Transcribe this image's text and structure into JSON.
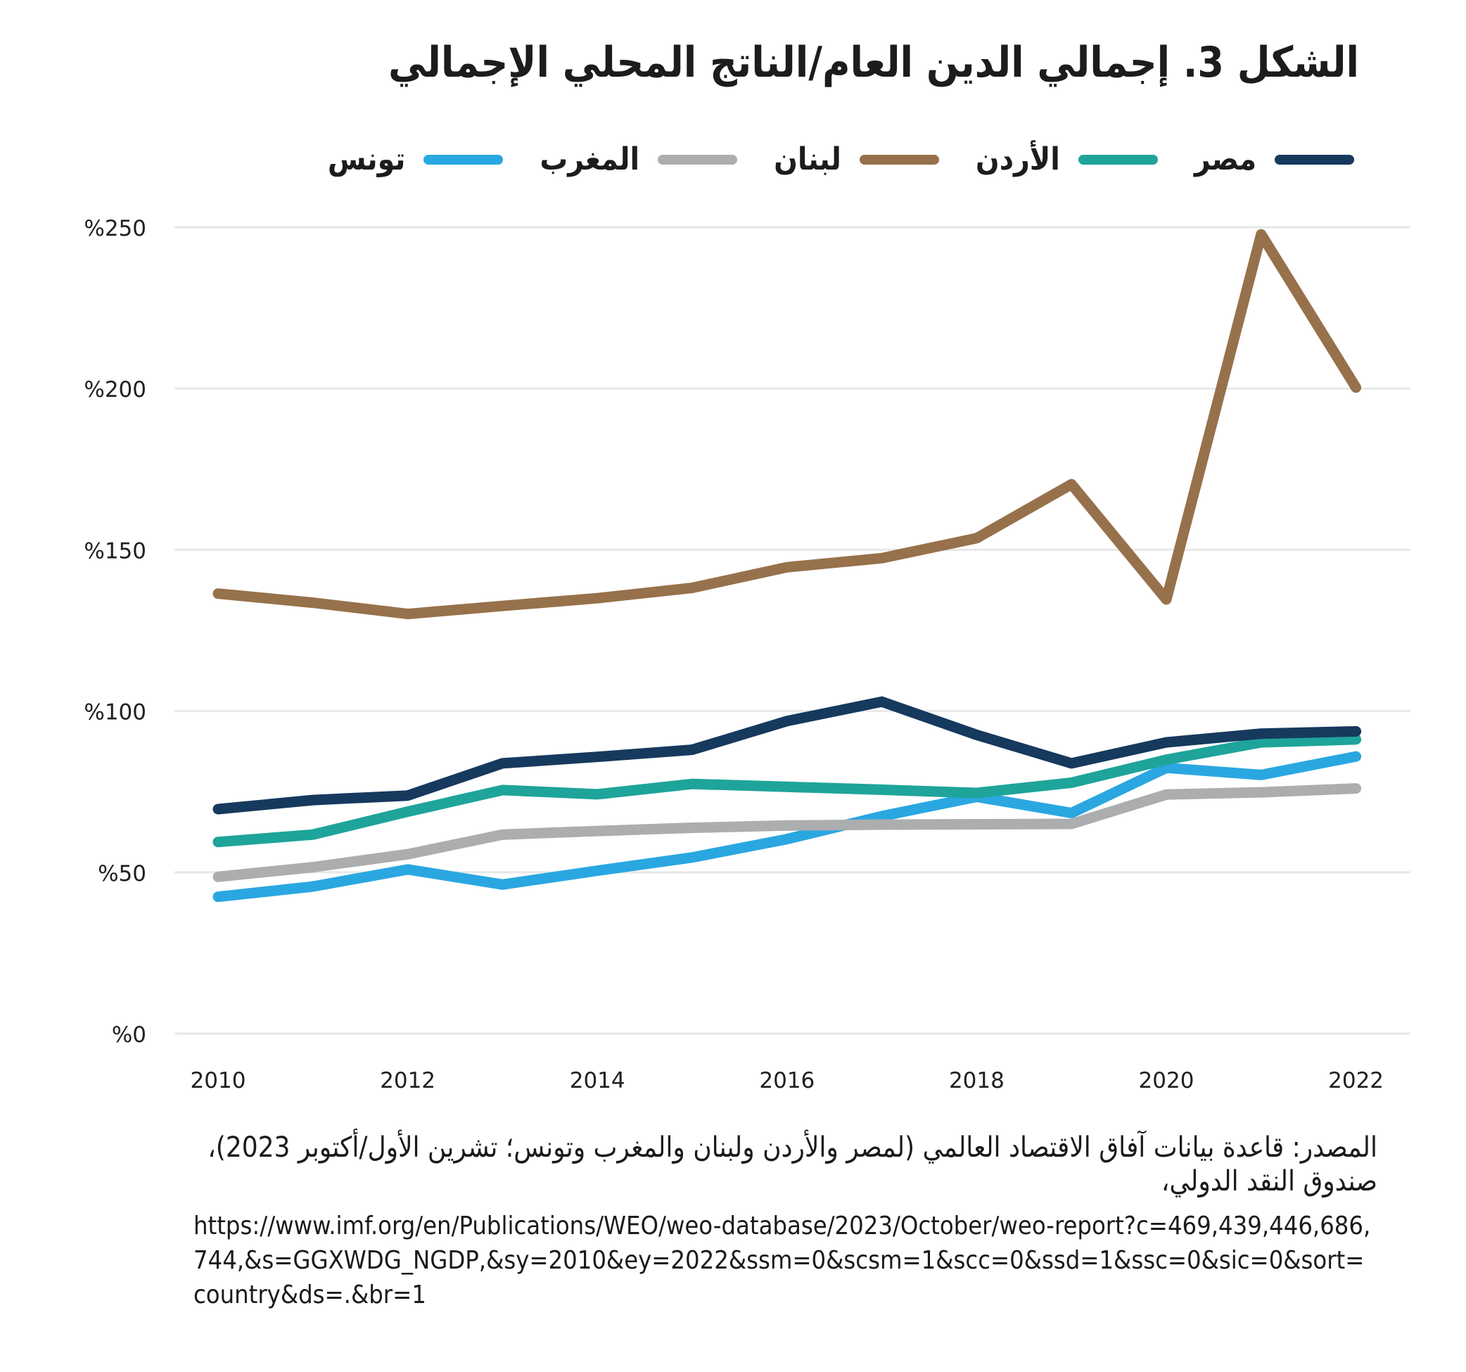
{
  "title": "الشكل 3. إجمالي الدين العام/الناتج المحلي الإجمالي",
  "chart_data": {
    "type": "line",
    "x": [
      2010,
      2011,
      2012,
      2013,
      2014,
      2015,
      2016,
      2017,
      2018,
      2019,
      2020,
      2021,
      2022
    ],
    "xticks": [
      2010,
      2012,
      2014,
      2016,
      2018,
      2020,
      2022
    ],
    "yticks": [
      0,
      50,
      100,
      150,
      200,
      250
    ],
    "ylim": [
      0,
      250
    ],
    "y_tick_prefix": "%",
    "grid": "horizontal-only",
    "legend_position": "top",
    "xlabel": "",
    "ylabel": "",
    "series": [
      {
        "name": "مصر",
        "color": "#16395E",
        "values": [
          69.6,
          72.4,
          73.8,
          83.8,
          85.8,
          88.0,
          96.9,
          102.9,
          92.6,
          83.8,
          90.3,
          93.0,
          93.7
        ]
      },
      {
        "name": "الأردن",
        "color": "#1EA49A",
        "values": [
          59.4,
          61.7,
          68.8,
          75.5,
          74.2,
          77.4,
          76.5,
          75.6,
          74.6,
          77.8,
          84.9,
          90.3,
          91.2
        ]
      },
      {
        "name": "لبنان",
        "color": "#97714B",
        "values": [
          136.4,
          133.6,
          130.1,
          132.6,
          135.0,
          138.2,
          144.6,
          147.4,
          153.6,
          170.3,
          134.6,
          247.8,
          200.3
        ]
      },
      {
        "name": "المغرب",
        "color": "#ABADAF",
        "values": [
          48.6,
          51.6,
          55.6,
          61.7,
          62.8,
          63.8,
          64.5,
          64.8,
          64.9,
          65.0,
          74.1,
          74.8,
          76.0
        ]
      },
      {
        "name": "تونس",
        "color": "#2AA7E1",
        "values": [
          42.4,
          45.6,
          50.9,
          46.2,
          50.5,
          54.6,
          60.3,
          67.4,
          73.4,
          68.4,
          82.4,
          80.2,
          85.9
        ]
      }
    ],
    "colors": {
      "grid": "#E8E8E8",
      "tick_text": "#1F1F1F"
    }
  },
  "source": {
    "lines": [
      "المصدر: قاعدة بيانات آفاق الاقتصاد العالمي (لمصر والأردن ولبنان والمغرب وتونس؛ تشرين الأول/أكتوبر 2023)،",
      "صندوق النقد الدولي،"
    ],
    "url_lines": [
      "https://www.imf.org/en/Publications/WEO/weo-database/2023/October/weo-report?c=469,439,446,686,",
      "744,&s=GGXWDG_NGDP,&sy=2010&ey=2022&ssm=0&scsm=1&scc=0&ssd=1&ssc=0&sic=0&sort=",
      "country&ds=.&br=1"
    ]
  }
}
